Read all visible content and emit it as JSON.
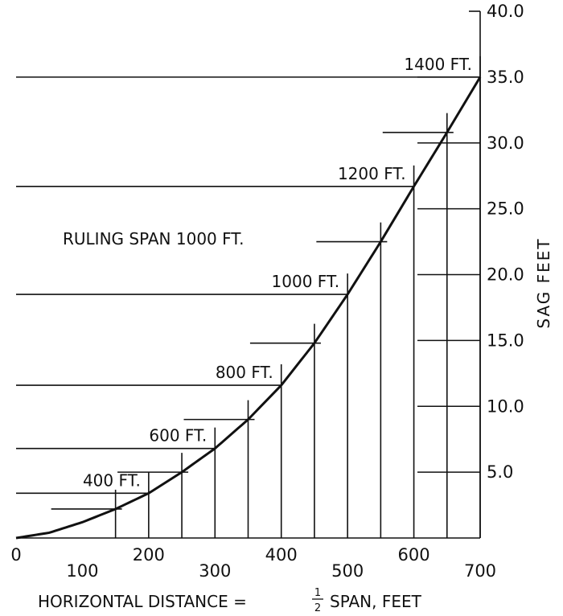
{
  "chart_data": {
    "type": "line",
    "title": "",
    "annotation": "RULING SPAN 1000 FT.",
    "xlabel_parts": [
      "HORIZONTAL DISTANCE =",
      "1",
      "2",
      "SPAN, FEET"
    ],
    "ylabel": "SAG FEET",
    "xlim": [
      0,
      700
    ],
    "ylim": [
      0,
      40
    ],
    "x_ticks": [
      "0",
      "100",
      "200",
      "300",
      "400",
      "500",
      "600",
      "700"
    ],
    "y_ticks": [
      "5.0",
      "10.0",
      "15.0",
      "20.0",
      "25.0",
      "30.0",
      "35.0",
      "40.0"
    ],
    "grid": true,
    "series": [
      {
        "x": [
          0,
          50,
          100,
          150,
          200,
          250,
          300,
          350,
          400,
          450,
          500,
          550,
          600,
          650,
          700
        ],
        "y": [
          0,
          0.4,
          1.2,
          2.2,
          3.4,
          5.0,
          6.8,
          9.0,
          11.6,
          14.8,
          18.5,
          22.5,
          26.7,
          30.8,
          35.0
        ]
      }
    ],
    "span_labels": [
      {
        "label": "400 FT.",
        "x": 200,
        "y": 3.4
      },
      {
        "label": "600 FT.",
        "x": 300,
        "y": 6.8
      },
      {
        "label": "800 FT.",
        "x": 400,
        "y": 11.6
      },
      {
        "label": "1000 FT.",
        "x": 500,
        "y": 18.5
      },
      {
        "label": "1200 FT.",
        "x": 600,
        "y": 26.7
      },
      {
        "label": "1400 FT.",
        "x": 700,
        "y": 35.0
      }
    ]
  }
}
